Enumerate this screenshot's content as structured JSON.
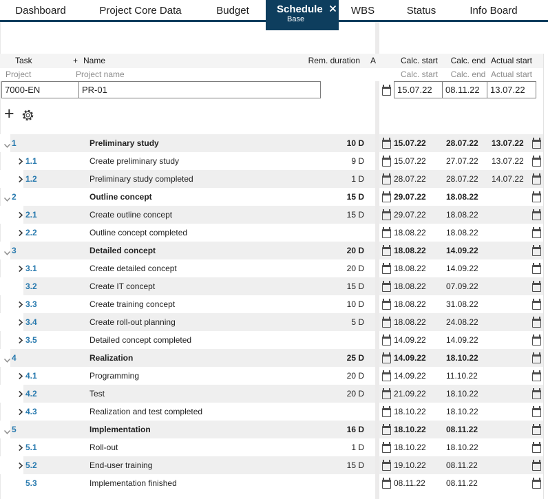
{
  "colors": {
    "accent_navy": "#0e3e5e",
    "task_number_blue": "#2779ae",
    "row_stripe": "#efefef",
    "header_band": "#f4f4f4"
  },
  "tabs": [
    {
      "label": "Dashboard",
      "active": false
    },
    {
      "label": "Project Core Data",
      "active": false
    },
    {
      "label": "Budget",
      "active": false
    },
    {
      "label": "Schedule",
      "active": true,
      "sublabel": "Base"
    },
    {
      "label": "WBS",
      "active": false
    },
    {
      "label": "Status",
      "active": false
    },
    {
      "label": "Info Board",
      "active": false
    }
  ],
  "left_header": {
    "task": "Task",
    "plus": "+",
    "name": "Name",
    "rem_duration": "Rem. duration",
    "truncated_col": "A"
  },
  "left_subheader": {
    "project": "Project",
    "project_name": "Project name"
  },
  "project_inputs": {
    "task_id": "7000-EN",
    "name": "PR-01"
  },
  "right_header": {
    "calc_start": "Calc. start",
    "calc_end": "Calc. end",
    "actual_start": "Actual start"
  },
  "right_subheader": {
    "calc_start": "Calc. start",
    "calc_end": "Calc. end",
    "actual_start": "Actual start"
  },
  "project_dates": {
    "calc_start": "15.07.22",
    "calc_end": "08.11.22",
    "actual_start": "13.07.22"
  },
  "tasks": [
    {
      "id": "1",
      "name": "Preliminary study",
      "duration": "10 D",
      "level": 1,
      "chevron": "down",
      "calc_start": "15.07.22",
      "calc_end": "28.07.22",
      "actual_start": "13.07.22"
    },
    {
      "id": "1.1",
      "name": "Create preliminary study",
      "duration": "9 D",
      "level": 2,
      "chevron": "right",
      "calc_start": "15.07.22",
      "calc_end": "27.07.22",
      "actual_start": "13.07.22"
    },
    {
      "id": "1.2",
      "name": "Preliminary study completed",
      "duration": "1 D",
      "level": 2,
      "chevron": "right",
      "calc_start": "28.07.22",
      "calc_end": "28.07.22",
      "actual_start": "14.07.22"
    },
    {
      "id": "2",
      "name": "Outline concept",
      "duration": "15 D",
      "level": 1,
      "chevron": "down",
      "calc_start": "29.07.22",
      "calc_end": "18.08.22",
      "actual_start": ""
    },
    {
      "id": "2.1",
      "name": "Create outline concept",
      "duration": "15 D",
      "level": 2,
      "chevron": "right",
      "calc_start": "29.07.22",
      "calc_end": "18.08.22",
      "actual_start": ""
    },
    {
      "id": "2.2",
      "name": "Outline concept completed",
      "duration": "",
      "level": 2,
      "chevron": "right",
      "calc_start": "18.08.22",
      "calc_end": "18.08.22",
      "actual_start": ""
    },
    {
      "id": "3",
      "name": "Detailed concept",
      "duration": "20 D",
      "level": 1,
      "chevron": "down",
      "calc_start": "18.08.22",
      "calc_end": "14.09.22",
      "actual_start": ""
    },
    {
      "id": "3.1",
      "name": "Create detailed concept",
      "duration": "20 D",
      "level": 2,
      "chevron": "right",
      "calc_start": "18.08.22",
      "calc_end": "14.09.22",
      "actual_start": ""
    },
    {
      "id": "3.2",
      "name": "Create IT concept",
      "duration": "15 D",
      "level": 2,
      "chevron": "none",
      "calc_start": "18.08.22",
      "calc_end": "07.09.22",
      "actual_start": ""
    },
    {
      "id": "3.3",
      "name": "Create training concept",
      "duration": "10 D",
      "level": 2,
      "chevron": "right",
      "calc_start": "18.08.22",
      "calc_end": "31.08.22",
      "actual_start": ""
    },
    {
      "id": "3.4",
      "name": "Create roll-out planning",
      "duration": "5 D",
      "level": 2,
      "chevron": "right",
      "calc_start": "18.08.22",
      "calc_end": "24.08.22",
      "actual_start": ""
    },
    {
      "id": "3.5",
      "name": "Detailed concept completed",
      "duration": "",
      "level": 2,
      "chevron": "right",
      "calc_start": "14.09.22",
      "calc_end": "14.09.22",
      "actual_start": ""
    },
    {
      "id": "4",
      "name": "Realization",
      "duration": "25 D",
      "level": 1,
      "chevron": "down",
      "calc_start": "14.09.22",
      "calc_end": "18.10.22",
      "actual_start": ""
    },
    {
      "id": "4.1",
      "name": "Programming",
      "duration": "20 D",
      "level": 2,
      "chevron": "right",
      "calc_start": "14.09.22",
      "calc_end": "11.10.22",
      "actual_start": ""
    },
    {
      "id": "4.2",
      "name": "Test",
      "duration": "20 D",
      "level": 2,
      "chevron": "right",
      "calc_start": "21.09.22",
      "calc_end": "18.10.22",
      "actual_start": ""
    },
    {
      "id": "4.3",
      "name": "Realization and test completed",
      "duration": "",
      "level": 2,
      "chevron": "right",
      "calc_start": "18.10.22",
      "calc_end": "18.10.22",
      "actual_start": ""
    },
    {
      "id": "5",
      "name": "Implementation",
      "duration": "16 D",
      "level": 1,
      "chevron": "down",
      "calc_start": "18.10.22",
      "calc_end": "08.11.22",
      "actual_start": ""
    },
    {
      "id": "5.1",
      "name": "Roll-out",
      "duration": "1 D",
      "level": 2,
      "chevron": "right",
      "calc_start": "18.10.22",
      "calc_end": "18.10.22",
      "actual_start": ""
    },
    {
      "id": "5.2",
      "name": "End-user training",
      "duration": "15 D",
      "level": 2,
      "chevron": "right",
      "calc_start": "19.10.22",
      "calc_end": "08.11.22",
      "actual_start": ""
    },
    {
      "id": "5.3",
      "name": "Implementation finished",
      "duration": "",
      "level": 2,
      "chevron": "none",
      "calc_start": "08.11.22",
      "calc_end": "08.11.22",
      "actual_start": ""
    }
  ]
}
